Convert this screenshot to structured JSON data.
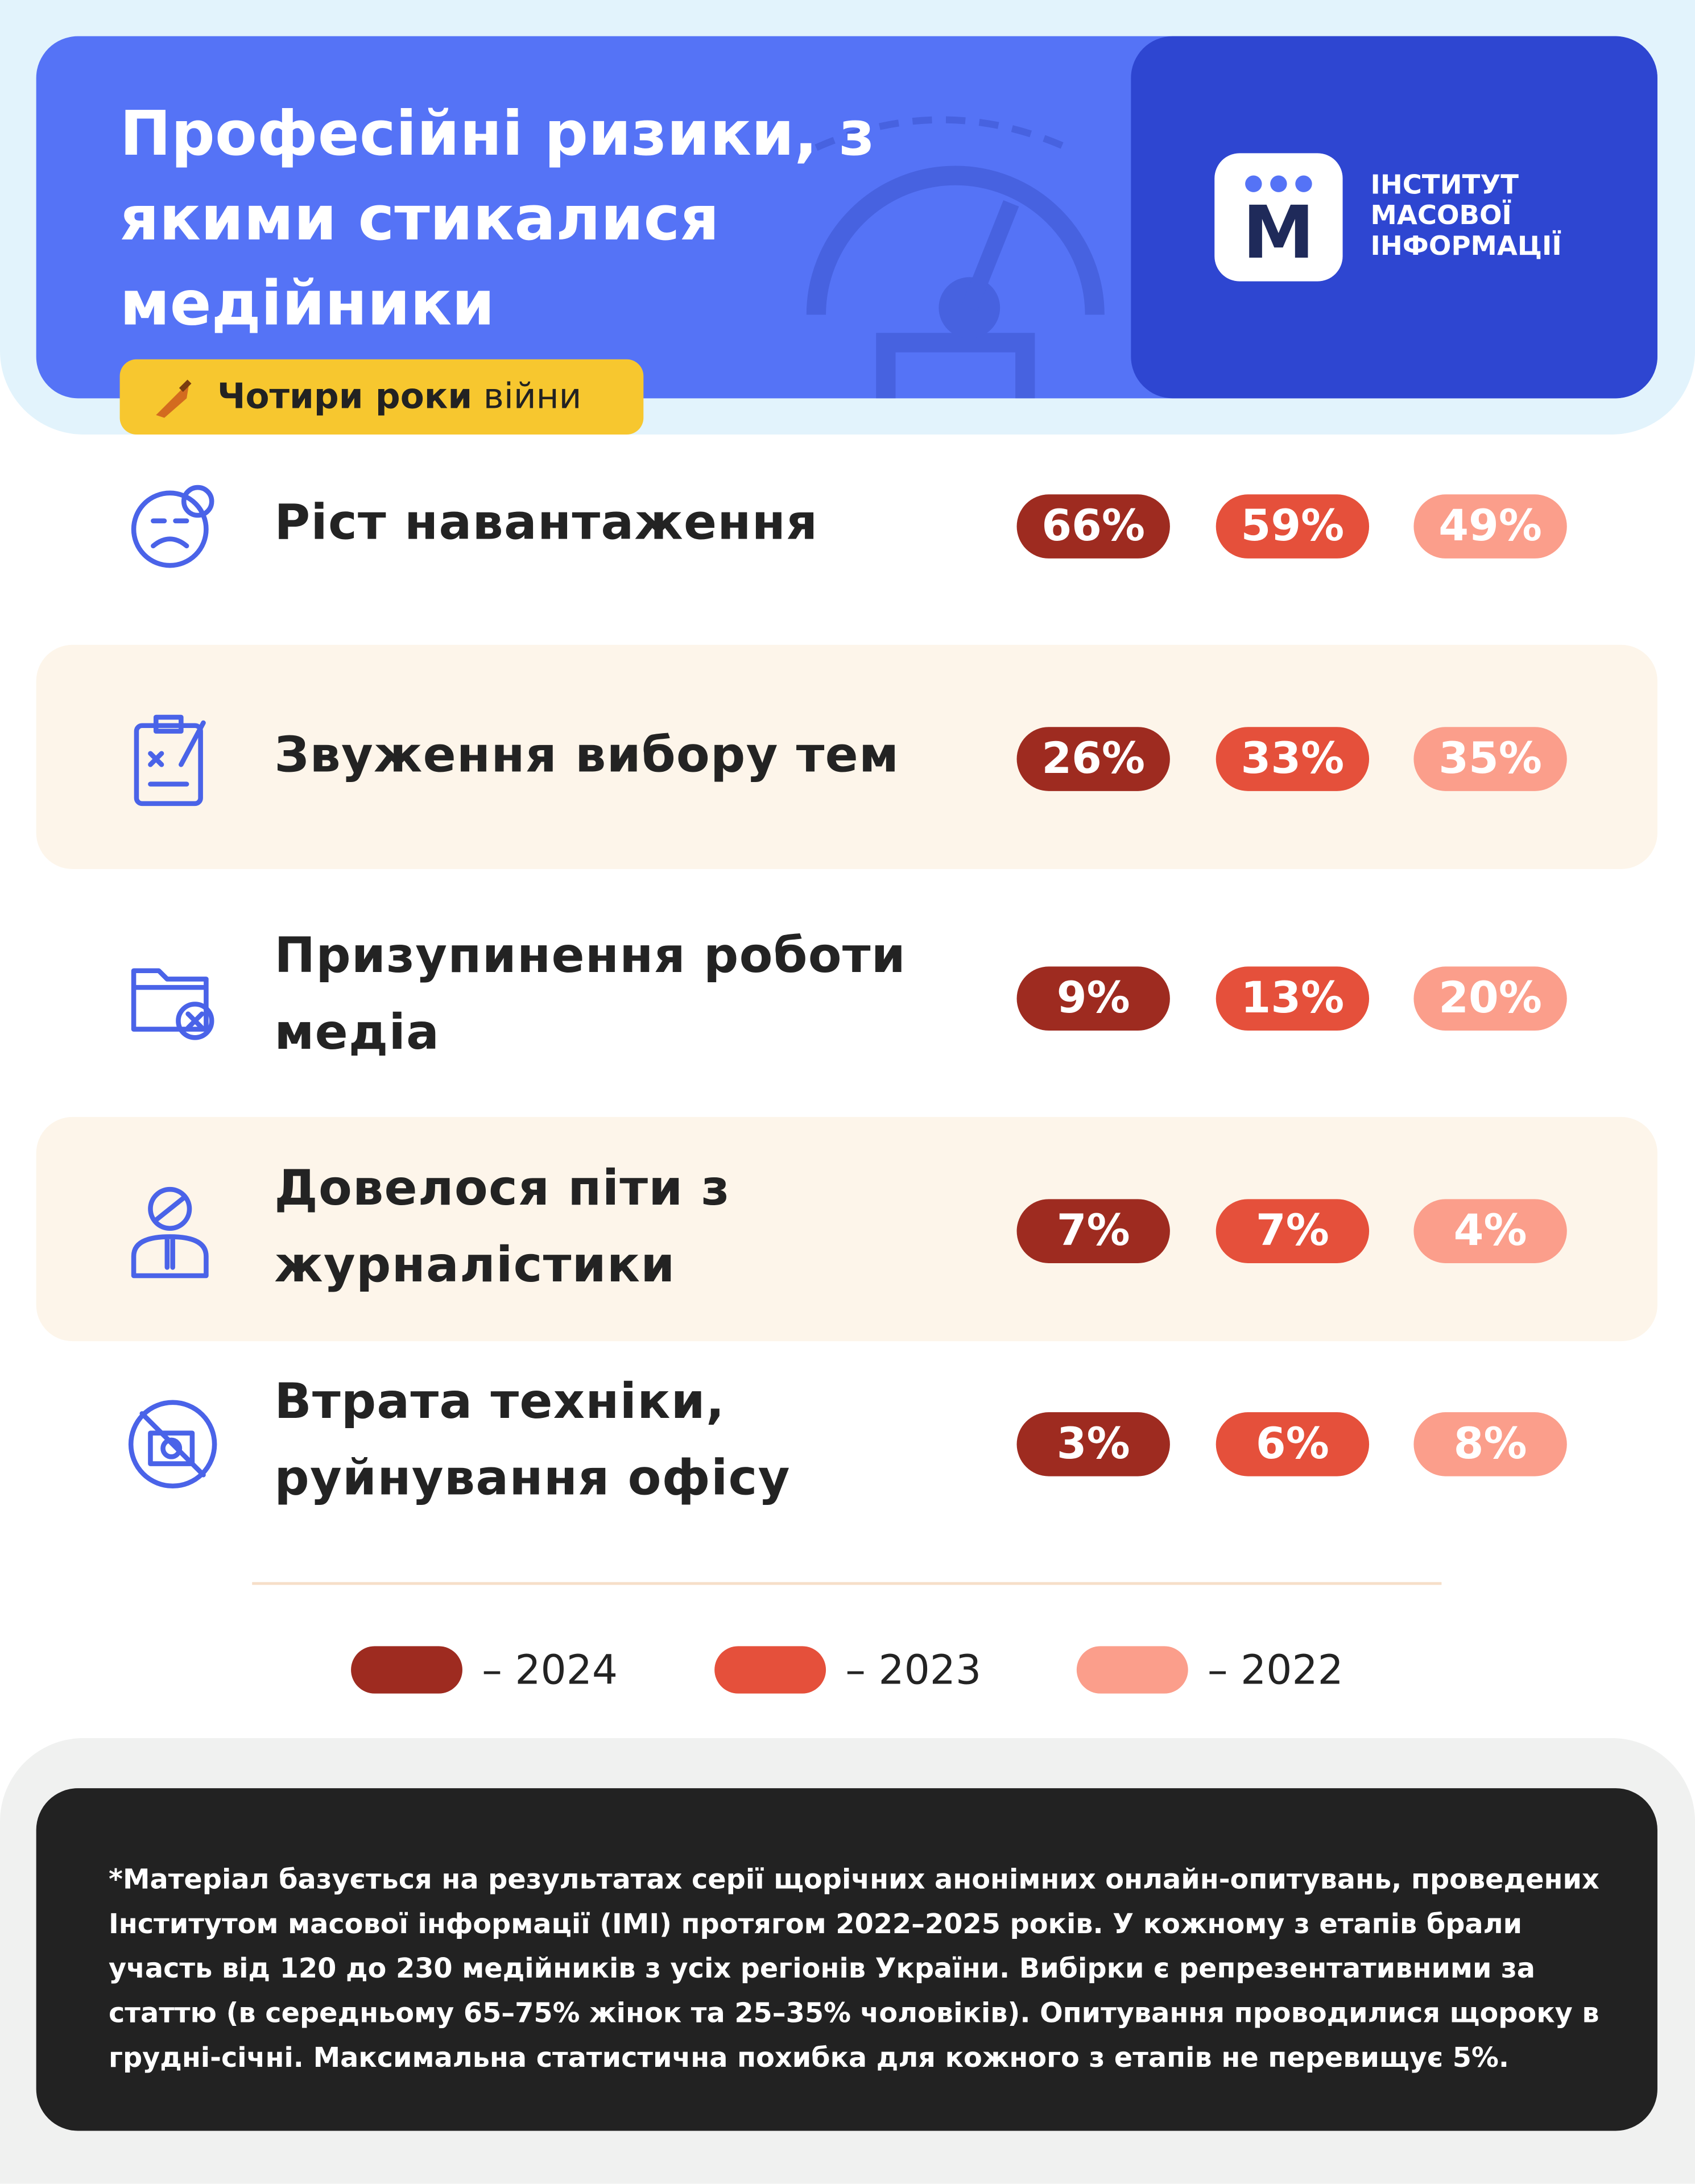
{
  "header": {
    "title": "Професійні ризики, з якими стикалися медійники",
    "badge": {
      "bold": "Чотири роки",
      "normal": "війни"
    },
    "logo": {
      "letter": "M",
      "lines": [
        "ІНСТИТУТ",
        "МАСОВОЇ",
        "ІНФОРМАЦІЇ"
      ]
    }
  },
  "rows": [
    {
      "label": "Ріст навантаження",
      "values": [
        "66%",
        "59%",
        "49%"
      ]
    },
    {
      "label": "Звуження вибору тем",
      "values": [
        "26%",
        "33%",
        "35%"
      ]
    },
    {
      "label": "Призупинення роботи медіа",
      "values": [
        "9%",
        "13%",
        "20%"
      ]
    },
    {
      "label": "Довелося піти з журналістики",
      "values": [
        "7%",
        "7%",
        "4%"
      ]
    },
    {
      "label": "Втрата техніки, руйнування офісу",
      "values": [
        "3%",
        "6%",
        "8%"
      ]
    }
  ],
  "legend": [
    {
      "label": "– 2024",
      "color": "#9e2b20"
    },
    {
      "label": "– 2023",
      "color": "#e5503b"
    },
    {
      "label": "– 2022",
      "color": "#fb9e8b"
    }
  ],
  "footnote": "*Матеріал базується на результатах серії щорічних анонімних онлайн-опитувань, проведених Інститутом масової інформації (ІМІ) протягом 2022–2025 років. У кожному з етапів брали участь від 120 до 230 медійників з усіх регіонів України. Вибірки є репрезентативними за статтю (в середньому 65–75% жінок та 25–35% чоловіків). Опитування проводилися щороку в грудні-січні. Максимальна статистична похибка для кожного з етапів не перевищує 5%."
}
